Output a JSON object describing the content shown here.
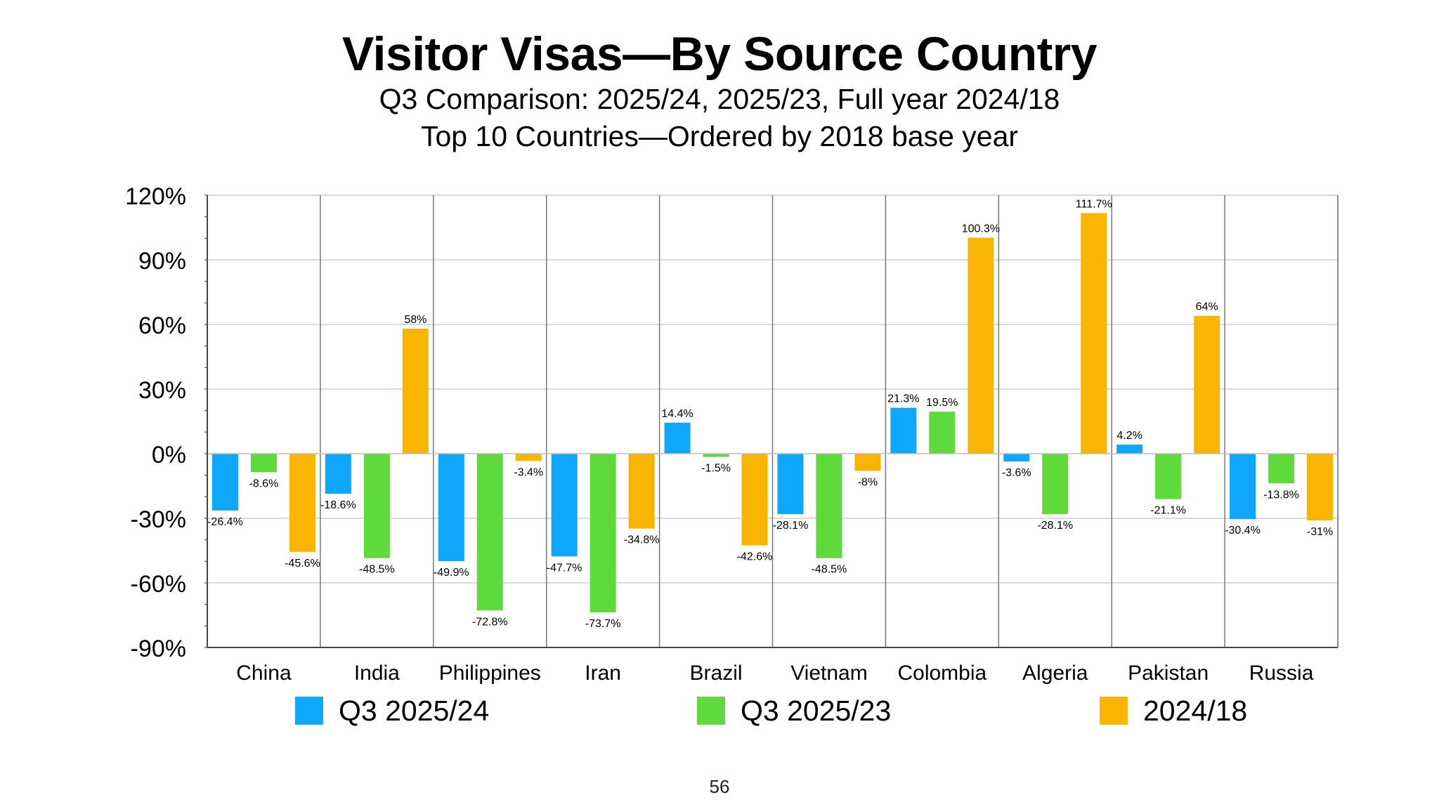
{
  "title": "Visitor Visas—By Source Country",
  "subtitle_line1": "Q3 Comparison: 2025/24, 2025/23, Full year 2024/18",
  "subtitle_line2": "Top 10 Countries—Ordered by 2018 base year",
  "page_number": "56",
  "chart_data": {
    "type": "bar",
    "categories": [
      "China",
      "India",
      "Philippines",
      "Iran",
      "Brazil",
      "Vietnam",
      "Colombia",
      "Algeria",
      "Pakistan",
      "Russia"
    ],
    "series": [
      {
        "name": "Q3 2025/24",
        "color": "#0fa7fb",
        "values": [
          -26.4,
          -18.6,
          -49.9,
          -47.7,
          14.4,
          -28.1,
          21.3,
          -3.6,
          4.2,
          -30.4
        ],
        "labels": [
          "-26.4%",
          "-18.6%",
          "-49.9%",
          "-47.7%",
          "14.4%",
          "-28.1%",
          "21.3%",
          "-3.6%",
          "4.2%",
          "-30.4%"
        ]
      },
      {
        "name": "Q3 2025/23",
        "color": "#60d93c",
        "values": [
          -8.6,
          -48.5,
          -72.8,
          -73.7,
          -1.5,
          -48.5,
          19.5,
          -28.1,
          -21.1,
          -13.8
        ],
        "labels": [
          "-8.6%",
          "-48.5%",
          "-72.8%",
          "-73.7%",
          "-1.5%",
          "-48.5%",
          "19.5%",
          "-28.1%",
          "-21.1%",
          "-13.8%"
        ]
      },
      {
        "name": "2024/18",
        "color": "#fab502",
        "values": [
          -45.6,
          58,
          -3.4,
          -34.8,
          -42.6,
          -8,
          100.3,
          111.7,
          64,
          -31
        ],
        "labels": [
          "-45.6%",
          "58%",
          "-3.4%",
          "-34.8%",
          "-42.6%",
          "-8%",
          "100.3%",
          "111.7%",
          "64%",
          "-31%"
        ]
      }
    ],
    "ylim": [
      -90,
      120
    ],
    "yticks": [
      120,
      90,
      60,
      30,
      0,
      -30,
      -60,
      -90
    ],
    "ytick_labels": [
      "120%",
      "90%",
      "60%",
      "30%",
      "0%",
      "-30%",
      "-60%",
      "-90%"
    ],
    "grid": true,
    "legend_position": "bottom"
  }
}
